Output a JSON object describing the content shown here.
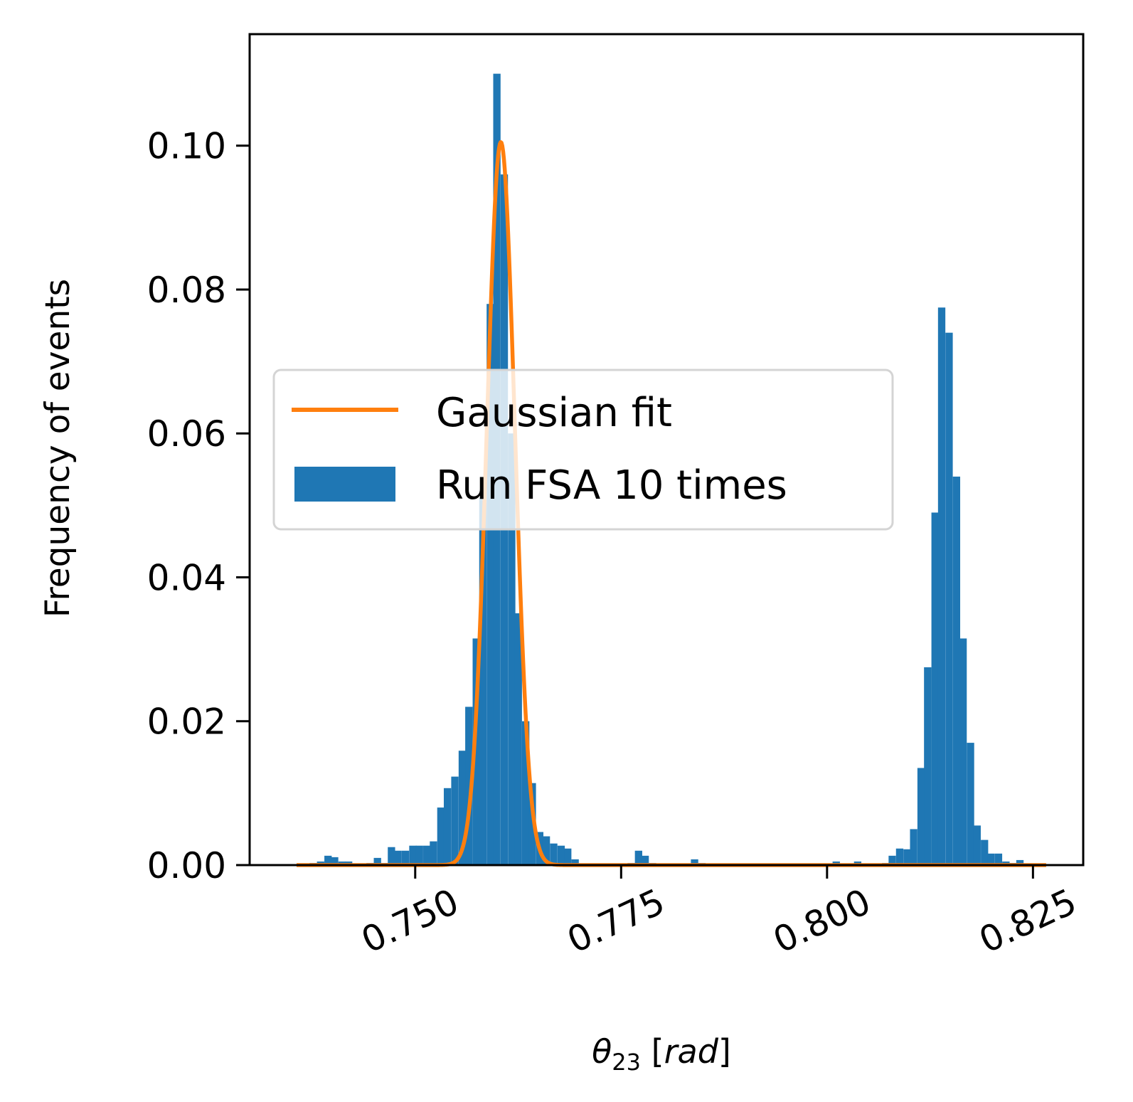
{
  "chart_data": {
    "type": "bar",
    "title": "",
    "xlabel": {
      "base": "θ",
      "subscript": "23",
      "unit": "rad"
    },
    "ylabel": "Frequency of events",
    "xlim": [
      0.7299,
      0.8311
    ],
    "ylim": [
      0,
      0.1155
    ],
    "xticks": [
      0.75,
      0.775,
      0.8,
      0.825
    ],
    "xtick_labels": [
      "0.750",
      "0.775",
      "0.800",
      "0.825"
    ],
    "yticks": [
      0.0,
      0.02,
      0.04,
      0.06,
      0.08,
      0.1
    ],
    "ytick_labels": [
      "0.00",
      "0.02",
      "0.04",
      "0.06",
      "0.08",
      "0.10"
    ],
    "grid": false,
    "legend": {
      "placement": "center-left",
      "entries": [
        {
          "label": "Gaussian fit",
          "kind": "line",
          "color": "#ff7f0e"
        },
        {
          "label": "Run FSA 10 times",
          "kind": "bar",
          "color": "#1f77b4"
        }
      ]
    },
    "series": [
      {
        "name": "Run FSA 10 times",
        "kind": "histogram",
        "color": "#1f77b4",
        "bin_width": 0.000857,
        "bins": [
          [
            0.7368,
            0.0001
          ],
          [
            0.7376,
            0.0003
          ],
          [
            0.7385,
            0.0005
          ],
          [
            0.7394,
            0.0013
          ],
          [
            0.7402,
            0.0011
          ],
          [
            0.7411,
            0.0005
          ],
          [
            0.7419,
            0.0005
          ],
          [
            0.7445,
            0.0003
          ],
          [
            0.7454,
            0.001
          ],
          [
            0.7462,
            0.0003
          ],
          [
            0.7471,
            0.0025
          ],
          [
            0.7479,
            0.002
          ],
          [
            0.7488,
            0.002
          ],
          [
            0.7497,
            0.0027
          ],
          [
            0.7505,
            0.0027
          ],
          [
            0.7514,
            0.0027
          ],
          [
            0.7522,
            0.0033
          ],
          [
            0.7531,
            0.008
          ],
          [
            0.7539,
            0.0107
          ],
          [
            0.7548,
            0.0123
          ],
          [
            0.7557,
            0.0159
          ],
          [
            0.7565,
            0.022
          ],
          [
            0.7574,
            0.0315
          ],
          [
            0.7582,
            0.051
          ],
          [
            0.7591,
            0.078
          ],
          [
            0.7599,
            0.11
          ],
          [
            0.7608,
            0.096
          ],
          [
            0.7617,
            0.06
          ],
          [
            0.7625,
            0.035
          ],
          [
            0.7634,
            0.02
          ],
          [
            0.7642,
            0.0114
          ],
          [
            0.7651,
            0.0046
          ],
          [
            0.7659,
            0.004
          ],
          [
            0.7668,
            0.003
          ],
          [
            0.7677,
            0.0027
          ],
          [
            0.7685,
            0.0023
          ],
          [
            0.7694,
            0.0008
          ],
          [
            0.7762,
            0.0003
          ],
          [
            0.7771,
            0.002
          ],
          [
            0.7779,
            0.0013
          ],
          [
            0.7788,
            0.0003
          ],
          [
            0.7839,
            0.0008
          ],
          [
            0.7848,
            0.0003
          ],
          [
            0.8011,
            0.0005
          ],
          [
            0.8037,
            0.0005
          ],
          [
            0.8071,
            0.0003
          ],
          [
            0.8079,
            0.0013
          ],
          [
            0.8088,
            0.0023
          ],
          [
            0.8097,
            0.0022
          ],
          [
            0.8105,
            0.005
          ],
          [
            0.8114,
            0.0135
          ],
          [
            0.8122,
            0.0275
          ],
          [
            0.8131,
            0.049
          ],
          [
            0.8139,
            0.0775
          ],
          [
            0.8148,
            0.074
          ],
          [
            0.8157,
            0.054
          ],
          [
            0.8165,
            0.0315
          ],
          [
            0.8174,
            0.017
          ],
          [
            0.8182,
            0.0055
          ],
          [
            0.8191,
            0.0035
          ],
          [
            0.8199,
            0.0016
          ],
          [
            0.8208,
            0.0016
          ],
          [
            0.8217,
            0.0005
          ],
          [
            0.8225,
            0.0003
          ],
          [
            0.8234,
            0.0007
          ],
          [
            0.8242,
            0.0002
          ]
        ]
      },
      {
        "name": "Gaussian fit",
        "kind": "line",
        "color": "#ff7f0e",
        "mean": 0.7604,
        "sigma": 0.0017,
        "peak": 0.1005,
        "x_range": [
          0.7356,
          0.8266
        ]
      }
    ]
  }
}
